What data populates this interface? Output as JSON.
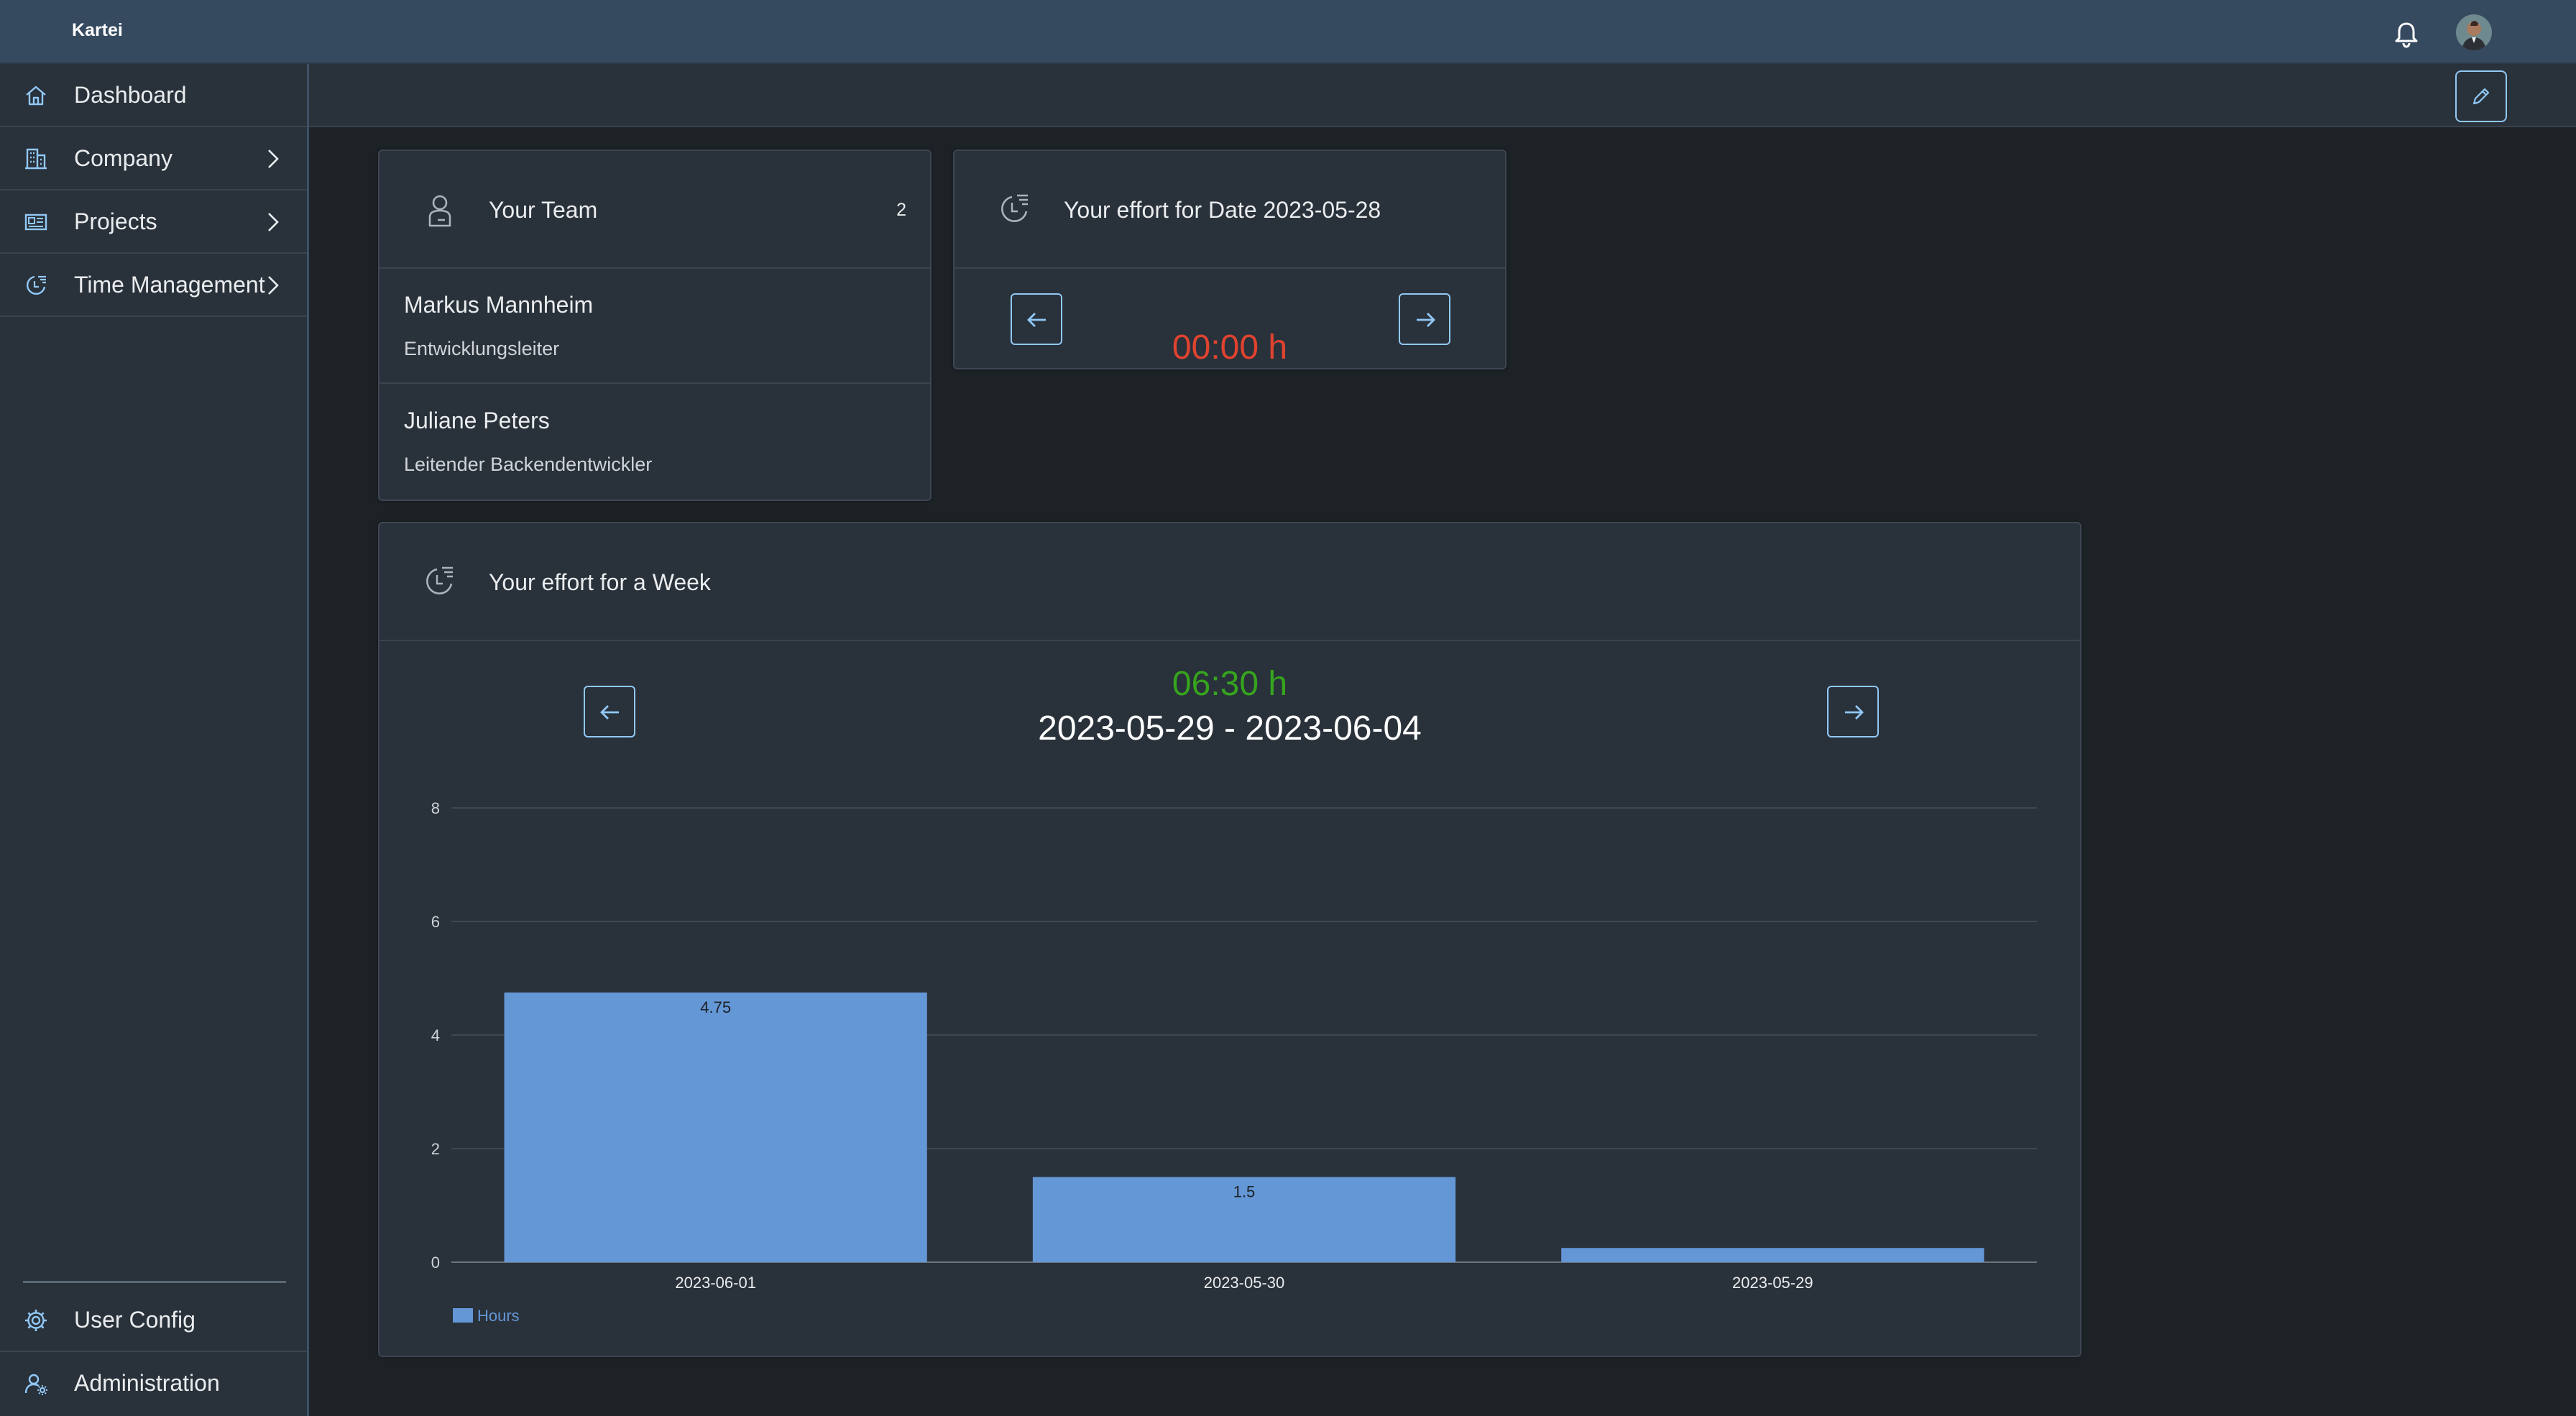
{
  "shell": {
    "brand": "Kartei",
    "icons": {
      "notifications": "bell-icon",
      "avatar": "user-avatar"
    }
  },
  "sidebar": {
    "items": [
      {
        "label": "Dashboard",
        "icon": "home-icon",
        "has_children": false
      },
      {
        "label": "Company",
        "icon": "building-icon",
        "has_children": true
      },
      {
        "label": "Projects",
        "icon": "project-card-icon",
        "has_children": true
      },
      {
        "label": "Time Management",
        "icon": "time-entry-icon",
        "has_children": true
      }
    ],
    "bottom_items": [
      {
        "label": "User Config",
        "icon": "gear-icon"
      },
      {
        "label": "Administration",
        "icon": "user-settings-icon"
      }
    ]
  },
  "toolbar": {
    "edit_icon": "pencil-icon"
  },
  "team_card": {
    "title": "Your Team",
    "count": "2",
    "icon": "employee-icon",
    "members": [
      {
        "name": "Markus Mannheim",
        "role": "Entwicklungsleiter"
      },
      {
        "name": "Juliane Peters",
        "role": "Leitender Backendentwickler"
      }
    ]
  },
  "day_card": {
    "title": "Your effort for Date 2023-05-28",
    "icon": "time-entry-icon",
    "value": "00:00 h"
  },
  "week_card": {
    "title": "Your effort for a Week",
    "icon": "time-entry-icon",
    "total": "06:30 h",
    "range": "2023-05-29 - 2023-06-04"
  },
  "colors": {
    "accent": "#91c8f6",
    "bar": "#6497d6",
    "negative": "#e0432f",
    "positive": "#36a41d"
  },
  "chart_data": {
    "type": "bar",
    "categories": [
      "2023-06-01",
      "2023-05-30",
      "2023-05-29"
    ],
    "series": [
      {
        "name": "Hours",
        "values": [
          4.75,
          1.5,
          0.25
        ]
      }
    ],
    "data_labels": [
      "4.75",
      "1.5",
      ""
    ],
    "y_ticks": [
      "0",
      "2",
      "4",
      "6",
      "8"
    ],
    "ylim": [
      0,
      8
    ],
    "grid": true,
    "legend": "bottom-left"
  }
}
